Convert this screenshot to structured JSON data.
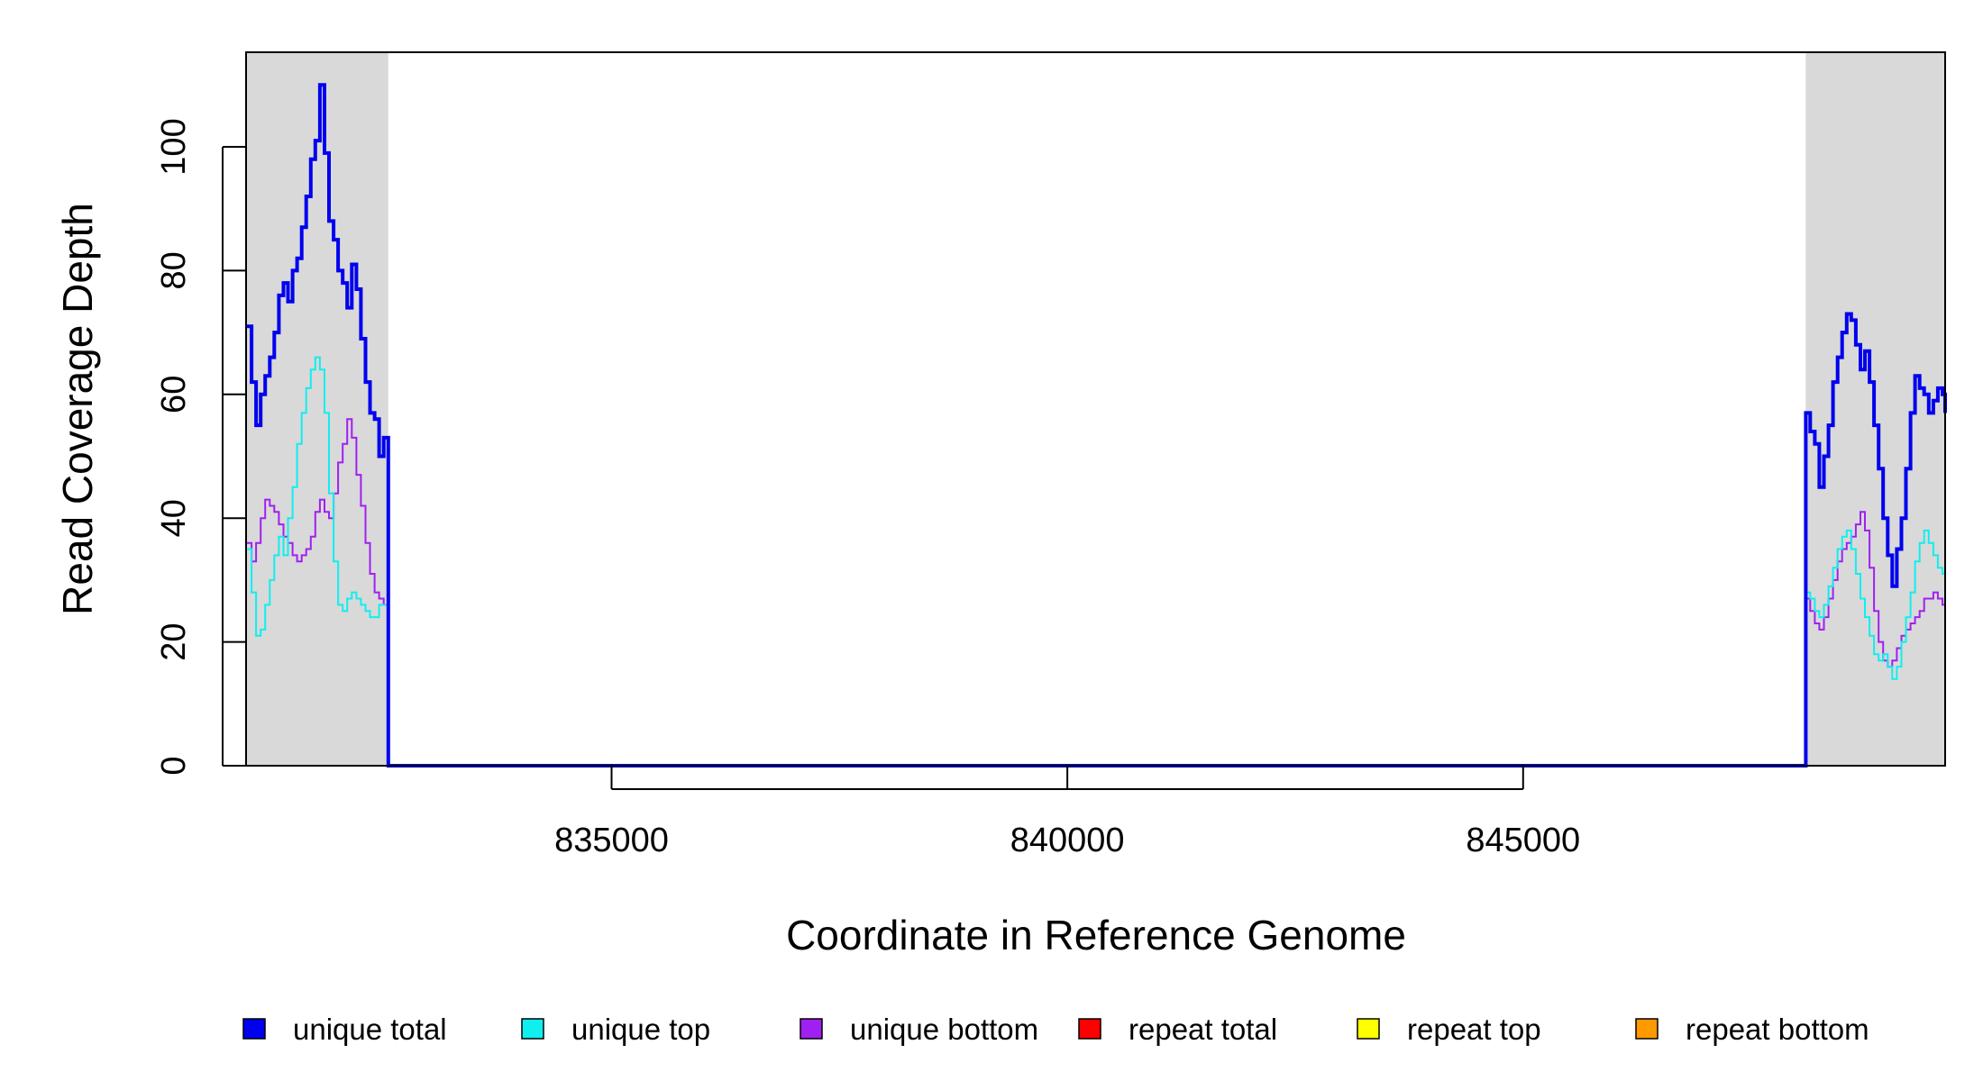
{
  "chart_data": {
    "type": "line",
    "title": "",
    "xlabel": "Coordinate in Reference Genome",
    "ylabel": "Read Coverage Depth",
    "xlim": [
      831000,
      849630
    ],
    "ylim": [
      0,
      115
    ],
    "x_ticks": [
      835000,
      840000,
      845000
    ],
    "x_tick_labels": [
      "835000",
      "840000",
      "845000"
    ],
    "y_ticks": [
      0,
      20,
      40,
      60,
      80,
      100
    ],
    "y_tick_labels": [
      "0",
      "20",
      "40",
      "60",
      "80",
      "100"
    ],
    "grid": false,
    "legend_position": "bottom",
    "shaded_regions": [
      {
        "x0": 831000,
        "x1": 832550,
        "color": "#d9d9d9"
      },
      {
        "x0": 848100,
        "x1": 849630,
        "color": "#d9d9d9"
      }
    ],
    "series": [
      {
        "name": "unique total",
        "color": "#0000ee",
        "x": [
          831000,
          831050,
          831100,
          831150,
          831200,
          831250,
          831300,
          831350,
          831400,
          831450,
          831500,
          831550,
          831600,
          831650,
          831700,
          831750,
          831800,
          831850,
          831900,
          831950,
          832000,
          832050,
          832100,
          832150,
          832200,
          832250,
          832300,
          832350,
          832400,
          832450,
          832500,
          832550,
          832551,
          848100,
          848101,
          848150,
          848200,
          848250,
          848300,
          848350,
          848400,
          848450,
          848500,
          848550,
          848600,
          848650,
          848700,
          848750,
          848800,
          848850,
          848900,
          848950,
          849000,
          849050,
          849100,
          849150,
          849200,
          849250,
          849300,
          849350,
          849400,
          849450,
          849500,
          849550,
          849600,
          849630
        ],
        "y": [
          71,
          62,
          55,
          60,
          63,
          66,
          70,
          76,
          78,
          75,
          80,
          82,
          87,
          92,
          98,
          101,
          110,
          99,
          88,
          85,
          80,
          78,
          74,
          81,
          77,
          69,
          62,
          57,
          56,
          50,
          53,
          53,
          0,
          0,
          57,
          54,
          52,
          45,
          50,
          55,
          62,
          66,
          70,
          73,
          72,
          68,
          64,
          67,
          62,
          55,
          48,
          40,
          34,
          29,
          35,
          40,
          48,
          57,
          63,
          61,
          60,
          57,
          59,
          61,
          60,
          57
        ],
        "width": 4
      },
      {
        "name": "unique top",
        "color": "#11eeee",
        "x": [
          831000,
          831050,
          831100,
          831150,
          831200,
          831250,
          831300,
          831350,
          831400,
          831450,
          831500,
          831550,
          831600,
          831650,
          831700,
          831750,
          831800,
          831850,
          831900,
          831950,
          832000,
          832050,
          832100,
          832150,
          832200,
          832250,
          832300,
          832350,
          832400,
          832450,
          832500,
          832550,
          832551,
          848100,
          848101,
          848150,
          848200,
          848250,
          848300,
          848350,
          848400,
          848450,
          848500,
          848550,
          848600,
          848650,
          848700,
          848750,
          848800,
          848850,
          848900,
          848950,
          849000,
          849050,
          849100,
          849150,
          849200,
          849250,
          849300,
          849350,
          849400,
          849450,
          849500,
          849550,
          849600,
          849630
        ],
        "y": [
          35,
          28,
          21,
          22,
          26,
          30,
          34,
          37,
          34,
          40,
          45,
          52,
          57,
          61,
          64,
          66,
          64,
          57,
          44,
          33,
          26,
          25,
          27,
          28,
          27,
          26,
          25,
          24,
          24,
          26,
          26,
          26,
          0,
          0,
          28,
          27,
          25,
          24,
          26,
          29,
          32,
          35,
          37,
          38,
          35,
          31,
          27,
          24,
          21,
          18,
          17,
          18,
          16,
          14,
          16,
          20,
          24,
          28,
          33,
          36,
          38,
          36,
          34,
          32,
          31,
          30
        ],
        "width": 2
      },
      {
        "name": "unique bottom",
        "color": "#a020f0",
        "x": [
          831000,
          831050,
          831100,
          831150,
          831200,
          831250,
          831300,
          831350,
          831400,
          831450,
          831500,
          831550,
          831600,
          831650,
          831700,
          831750,
          831800,
          831850,
          831900,
          831950,
          832000,
          832050,
          832100,
          832150,
          832200,
          832250,
          832300,
          832350,
          832400,
          832450,
          832500,
          832550,
          832551,
          848100,
          848101,
          848150,
          848200,
          848250,
          848300,
          848350,
          848400,
          848450,
          848500,
          848550,
          848600,
          848650,
          848700,
          848750,
          848800,
          848850,
          848900,
          848950,
          849000,
          849050,
          849100,
          849150,
          849200,
          849250,
          849300,
          849350,
          849400,
          849450,
          849500,
          849550,
          849600,
          849630
        ],
        "y": [
          36,
          33,
          36,
          40,
          43,
          42,
          41,
          39,
          37,
          36,
          34,
          33,
          34,
          35,
          37,
          41,
          43,
          41,
          40,
          44,
          49,
          52,
          56,
          53,
          47,
          42,
          36,
          31,
          28,
          27,
          26,
          26,
          0,
          0,
          27,
          25,
          23,
          22,
          24,
          27,
          30,
          33,
          35,
          36,
          37,
          39,
          41,
          38,
          32,
          25,
          20,
          17,
          16,
          17,
          19,
          21,
          22,
          23,
          24,
          25,
          27,
          27,
          28,
          27,
          26,
          26
        ],
        "width": 2
      },
      {
        "name": "repeat total",
        "color": "#ff0000",
        "x": [
          831000,
          849630
        ],
        "y": [
          0,
          0
        ],
        "width": 2
      },
      {
        "name": "repeat top",
        "color": "#ffff00",
        "x": [
          831000,
          849630
        ],
        "y": [
          0,
          0
        ],
        "width": 2
      },
      {
        "name": "repeat bottom",
        "color": "#ff9900",
        "x": [
          831000,
          849630
        ],
        "y": [
          0,
          0
        ],
        "width": 2
      }
    ]
  }
}
